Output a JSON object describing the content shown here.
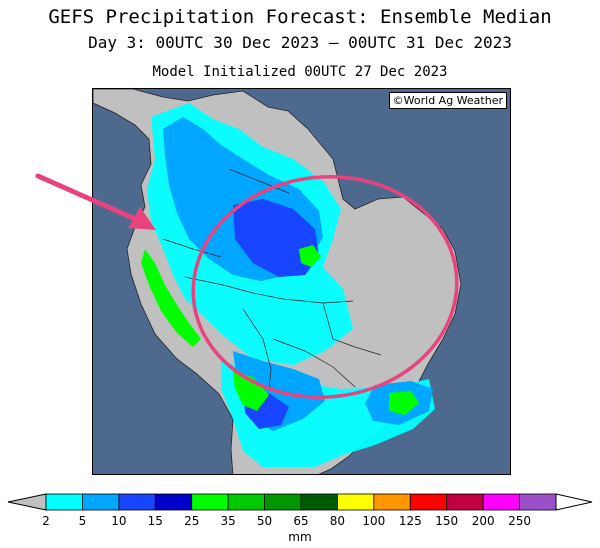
{
  "header": {
    "title": "GEFS Precipitation Forecast: Ensemble Median",
    "period": "Day 3: 00UTC 30 Dec 2023 — 00UTC 31 Dec 2023",
    "init": "Model Initialized 00UTC 27 Dec 2023"
  },
  "map": {
    "credit": "©World Ag Weather",
    "region": "South America (northern half)",
    "ocean_color": "#4d6a8e",
    "land_dry_color": "#c0c0c0",
    "annotation": {
      "highlight_ellipse_color": "#e8437e",
      "arrow_color": "#e8437e"
    }
  },
  "legend": {
    "unit": "mm",
    "ticks": [
      "2",
      "5",
      "10",
      "15",
      "25",
      "35",
      "50",
      "65",
      "80",
      "100",
      "125",
      "150",
      "200",
      "250"
    ],
    "colors": [
      "#00ffff",
      "#00a6ff",
      "#1845ff",
      "#0000c8",
      "#00ff00",
      "#00c800",
      "#009600",
      "#005a00",
      "#ffff00",
      "#ff9600",
      "#ff0000",
      "#c00040",
      "#ff00ff",
      "#9b4fc8"
    ]
  }
}
